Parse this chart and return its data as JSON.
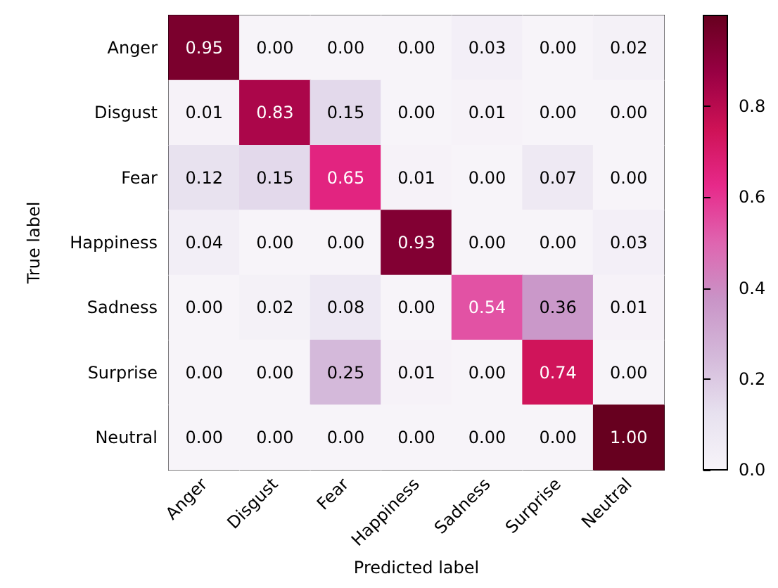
{
  "chart_data": {
    "type": "heatmap",
    "xlabel": "Predicted label",
    "ylabel": "True label",
    "categories": [
      "Anger",
      "Disgust",
      "Fear",
      "Happiness",
      "Sadness",
      "Surprise",
      "Neutral"
    ],
    "y_categories": [
      "Anger",
      "Disgust",
      "Fear",
      "Happiness",
      "Sadness",
      "Surprise",
      "Neutral"
    ],
    "cells": [
      [
        0.95,
        0.0,
        0.0,
        0.0,
        0.03,
        0.0,
        0.02
      ],
      [
        0.01,
        0.83,
        0.15,
        0.0,
        0.01,
        0.0,
        0.0
      ],
      [
        0.12,
        0.15,
        0.65,
        0.01,
        0.0,
        0.07,
        0.0
      ],
      [
        0.04,
        0.0,
        0.0,
        0.93,
        0.0,
        0.0,
        0.03
      ],
      [
        0.0,
        0.02,
        0.08,
        0.0,
        0.54,
        0.36,
        0.01
      ],
      [
        0.0,
        0.0,
        0.25,
        0.01,
        0.0,
        0.74,
        0.0
      ],
      [
        0.0,
        0.0,
        0.0,
        0.0,
        0.0,
        0.0,
        1.0
      ]
    ],
    "cell_labels": [
      [
        "0.95",
        "0.00",
        "0.00",
        "0.00",
        "0.03",
        "0.00",
        "0.02"
      ],
      [
        "0.01",
        "0.83",
        "0.15",
        "0.00",
        "0.01",
        "0.00",
        "0.00"
      ],
      [
        "0.12",
        "0.15",
        "0.65",
        "0.01",
        "0.00",
        "0.07",
        "0.00"
      ],
      [
        "0.04",
        "0.00",
        "0.00",
        "0.93",
        "0.00",
        "0.00",
        "0.03"
      ],
      [
        "0.00",
        "0.02",
        "0.08",
        "0.00",
        "0.54",
        "0.36",
        "0.01"
      ],
      [
        "0.00",
        "0.00",
        "0.25",
        "0.01",
        "0.00",
        "0.74",
        "0.00"
      ],
      [
        "0.00",
        "0.00",
        "0.00",
        "0.00",
        "0.00",
        "0.00",
        "1.00"
      ]
    ],
    "clim": [
      0,
      1
    ],
    "cticks": [
      {
        "value": 0,
        "label": "0.0"
      },
      {
        "value": 0.2,
        "label": "0.2"
      },
      {
        "value": 0.4,
        "label": "0.4"
      },
      {
        "value": 0.6,
        "label": "0.6"
      },
      {
        "value": 0.8,
        "label": "0.8"
      }
    ]
  }
}
